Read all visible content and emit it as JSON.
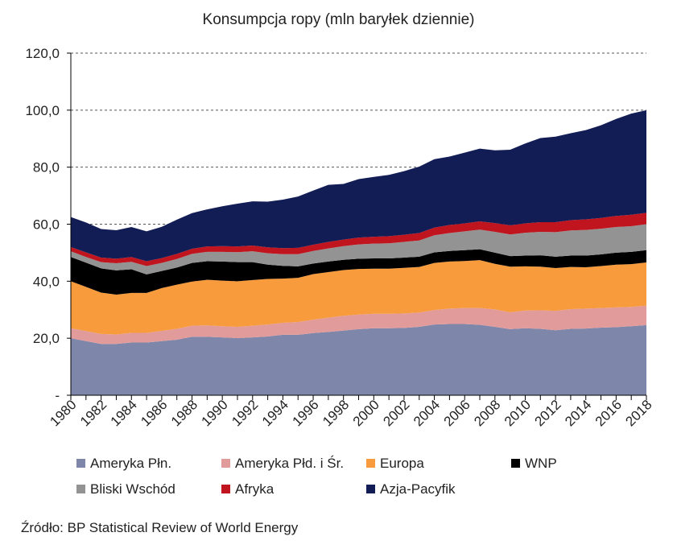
{
  "chart_data": {
    "type": "area",
    "stacked": true,
    "title": "Konsumpcja ropy (mln baryłek dziennie)",
    "xlabel": "",
    "ylabel": "",
    "ylim": [
      0,
      120
    ],
    "yticks": [
      "-",
      "20,0",
      "40,0",
      "60,0",
      "80,0",
      "100,0",
      "120,0"
    ],
    "ytick_values": [
      0,
      20,
      40,
      60,
      80,
      100,
      120
    ],
    "xticks": [
      "1980",
      "1982",
      "1984",
      "1986",
      "1988",
      "1990",
      "1992",
      "1994",
      "1996",
      "1998",
      "2000",
      "2002",
      "2004",
      "2006",
      "2008",
      "2010",
      "2012",
      "2014",
      "2016",
      "2018"
    ],
    "grid": "horizontal-dashed",
    "legend_position": "bottom",
    "x": [
      1980,
      1981,
      1982,
      1983,
      1984,
      1985,
      1986,
      1987,
      1988,
      1989,
      1990,
      1991,
      1992,
      1993,
      1994,
      1995,
      1996,
      1997,
      1998,
      1999,
      2000,
      2001,
      2002,
      2003,
      2004,
      2005,
      2006,
      2007,
      2008,
      2009,
      2010,
      2011,
      2012,
      2013,
      2014,
      2015,
      2016,
      2017,
      2018
    ],
    "series": [
      {
        "name": "Ameryka Płn.",
        "color": "#7e87aa",
        "values": [
          20.0,
          19.0,
          18.0,
          18.0,
          18.5,
          18.5,
          19.0,
          19.5,
          20.5,
          20.5,
          20.3,
          20.0,
          20.3,
          20.6,
          21.2,
          21.2,
          21.8,
          22.2,
          22.7,
          23.2,
          23.5,
          23.5,
          23.6,
          24.0,
          24.8,
          25.0,
          25.0,
          24.7,
          24.0,
          23.2,
          23.5,
          23.3,
          22.8,
          23.3,
          23.4,
          23.7,
          23.9,
          24.2,
          24.6
        ]
      },
      {
        "name": "Ameryka Płd. i Śr.",
        "color": "#e29b9b",
        "values": [
          3.5,
          3.5,
          3.5,
          3.3,
          3.4,
          3.4,
          3.6,
          3.8,
          3.9,
          4.0,
          3.9,
          4.0,
          4.1,
          4.2,
          4.2,
          4.5,
          4.7,
          5.0,
          5.2,
          5.1,
          5.1,
          5.1,
          5.1,
          5.0,
          5.1,
          5.4,
          5.6,
          5.9,
          6.1,
          5.9,
          6.2,
          6.5,
          6.8,
          6.9,
          7.0,
          6.9,
          6.9,
          6.8,
          6.8
        ]
      },
      {
        "name": "Europa",
        "color": "#f79b3c",
        "values": [
          16.5,
          15.5,
          14.5,
          14.0,
          14.0,
          14.0,
          15.0,
          15.5,
          15.5,
          16.0,
          16.0,
          16.0,
          16.0,
          16.0,
          15.5,
          15.5,
          16.0,
          16.0,
          16.0,
          16.0,
          15.8,
          15.8,
          16.0,
          16.0,
          16.5,
          16.5,
          16.5,
          16.8,
          16.0,
          16.0,
          15.5,
          15.3,
          15.0,
          14.8,
          14.5,
          14.7,
          15.0,
          15.0,
          15.2
        ]
      },
      {
        "name": "WNP",
        "color": "#000000",
        "values": [
          8.5,
          8.5,
          8.5,
          8.5,
          8.3,
          6.5,
          6.0,
          6.0,
          6.5,
          6.5,
          6.7,
          6.7,
          6.3,
          5.0,
          4.5,
          4.0,
          3.7,
          3.7,
          3.6,
          3.6,
          3.6,
          3.6,
          3.6,
          3.6,
          3.7,
          3.7,
          3.8,
          3.8,
          3.9,
          3.7,
          3.8,
          4.0,
          4.0,
          4.0,
          4.1,
          4.1,
          4.2,
          4.3,
          4.3
        ]
      },
      {
        "name": "Bliski Wschód",
        "color": "#939393",
        "values": [
          2.0,
          2.0,
          2.2,
          2.5,
          2.6,
          2.9,
          2.8,
          3.0,
          3.2,
          3.3,
          3.4,
          3.5,
          3.8,
          4.0,
          4.1,
          4.3,
          4.4,
          4.6,
          4.8,
          5.0,
          5.2,
          5.3,
          5.5,
          5.7,
          6.0,
          6.3,
          6.6,
          6.9,
          7.3,
          7.6,
          8.0,
          8.2,
          8.6,
          8.8,
          9.0,
          9.0,
          9.0,
          9.0,
          9.1
        ]
      },
      {
        "name": "Afryka",
        "color": "#c0141e",
        "values": [
          1.5,
          1.6,
          1.6,
          1.6,
          1.7,
          1.7,
          1.7,
          1.8,
          1.8,
          1.9,
          2.0,
          2.0,
          2.0,
          2.1,
          2.1,
          2.2,
          2.2,
          2.3,
          2.3,
          2.4,
          2.4,
          2.5,
          2.5,
          2.6,
          2.7,
          2.8,
          2.8,
          2.9,
          3.1,
          3.2,
          3.3,
          3.4,
          3.5,
          3.6,
          3.7,
          3.8,
          3.9,
          4.0,
          4.0
        ]
      },
      {
        "name": "Azja-Pacyfik",
        "color": "#121c55",
        "values": [
          10.5,
          10.5,
          10.0,
          10.0,
          10.5,
          10.5,
          11.0,
          12.0,
          12.5,
          13.0,
          14.0,
          15.0,
          15.5,
          16.0,
          17.0,
          18.0,
          19.0,
          20.0,
          19.5,
          20.5,
          21.0,
          21.5,
          22.3,
          23.3,
          24.0,
          24.0,
          24.8,
          25.5,
          25.5,
          26.5,
          28.0,
          29.5,
          30.0,
          30.5,
          31.3,
          32.5,
          34.0,
          35.5,
          36.0
        ]
      }
    ]
  },
  "legend": {
    "items": [
      {
        "label": "Ameryka Płn.",
        "color": "#7e87aa"
      },
      {
        "label": "Ameryka Płd. i Śr.",
        "color": "#e29b9b"
      },
      {
        "label": "Europa",
        "color": "#f79b3c"
      },
      {
        "label": "WNP",
        "color": "#000000"
      },
      {
        "label": "Bliski Wschód",
        "color": "#939393"
      },
      {
        "label": "Afryka",
        "color": "#c0141e"
      },
      {
        "label": "Azja-Pacyfik",
        "color": "#121c55"
      }
    ]
  },
  "source": "Źródło: BP Statistical Review of World Energy"
}
